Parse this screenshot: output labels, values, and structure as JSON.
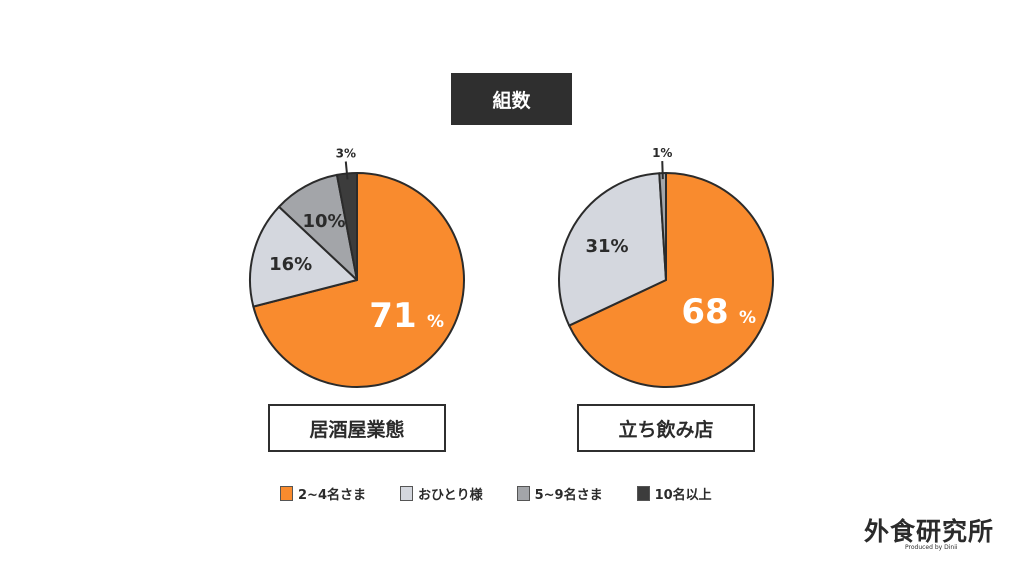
{
  "title": "組数",
  "chart_data": [
    {
      "type": "pie",
      "caption": "居酒屋業態",
      "slices": [
        {
          "name": "2~4名さま",
          "value": 71,
          "label": "71"
        },
        {
          "name": "おひとり様",
          "value": 16,
          "label": "16%"
        },
        {
          "name": "5~9名さま",
          "value": 10,
          "label": "10%"
        },
        {
          "name": "10名以上",
          "value": 3,
          "label": "3%"
        }
      ]
    },
    {
      "type": "pie",
      "caption": "立ち飲み店",
      "slices": [
        {
          "name": "2~4名さま",
          "value": 68,
          "label": "68"
        },
        {
          "name": "おひとり様",
          "value": 31,
          "label": "31%"
        },
        {
          "name": "5~9名さま",
          "value": 1,
          "label": "1%"
        }
      ]
    }
  ],
  "legend": [
    {
      "name": "2~4名さま",
      "color": "#F98B2E"
    },
    {
      "name": "おひとり様",
      "color": "#D4D7DE"
    },
    {
      "name": "5~9名さま",
      "color": "#A3A5A9"
    },
    {
      "name": "10名以上",
      "color": "#3C3C3C"
    }
  ],
  "logo": {
    "text": "外食研究所",
    "sub": "Produced by Dinii"
  }
}
